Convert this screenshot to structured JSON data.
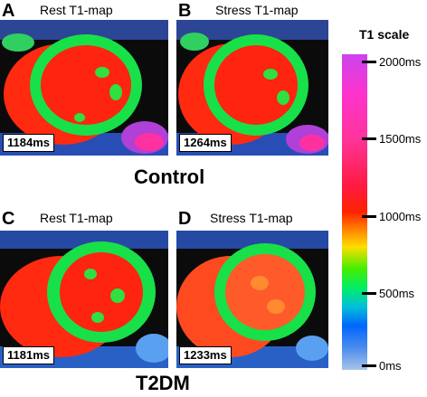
{
  "panels": [
    {
      "letter": "A",
      "title": "Rest T1-map",
      "value": "1184ms"
    },
    {
      "letter": "B",
      "title": "Stress T1-map",
      "value": "1264ms"
    },
    {
      "letter": "C",
      "title": "Rest T1-map",
      "value": "1181ms"
    },
    {
      "letter": "D",
      "title": "Stress T1-map",
      "value": "1233ms"
    }
  ],
  "groups": {
    "control": "Control",
    "t2dm": "T2DM"
  },
  "scale": {
    "title": "T1 scale",
    "ticks": [
      "2000ms",
      "1500ms",
      "1000ms",
      "500ms",
      "0ms"
    ],
    "colors": [
      "#cc44ee",
      "#ff3399",
      "#ff2200",
      "#ffdd00",
      "#44ee00",
      "#00c0d8",
      "#0066ff",
      "#a8c4ea"
    ]
  }
}
